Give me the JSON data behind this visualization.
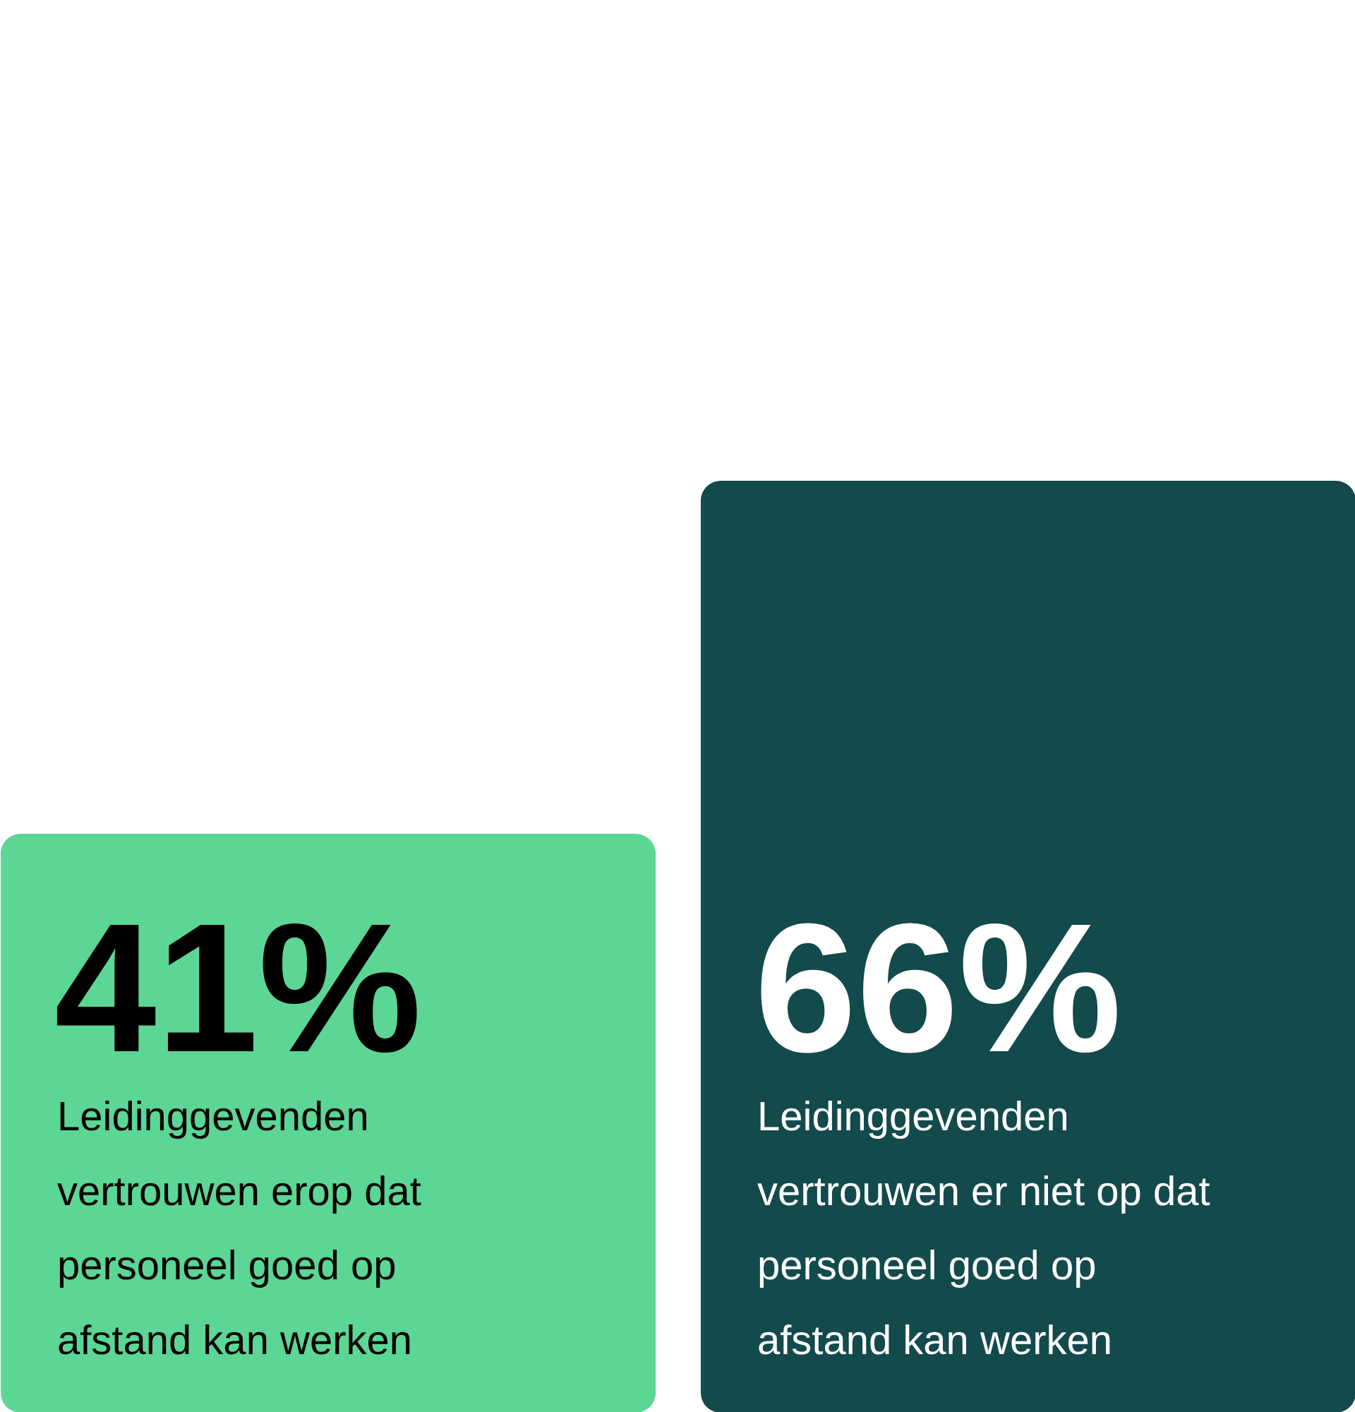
{
  "chart_data": {
    "type": "bar",
    "categories": [
      "Leidinggevenden\nvertrouwen erop dat\npersoneel goed op\nafstand kan werken",
      "Leidinggevenden\nvertrouwen er niet op dat\npersoneel goed op\nafstand kan werken"
    ],
    "values": [
      41,
      66
    ],
    "colors": [
      "#5cd695",
      "#134a4c"
    ],
    "value_labels": [
      "41%",
      "66%"
    ],
    "ylim": [
      0,
      100
    ]
  }
}
